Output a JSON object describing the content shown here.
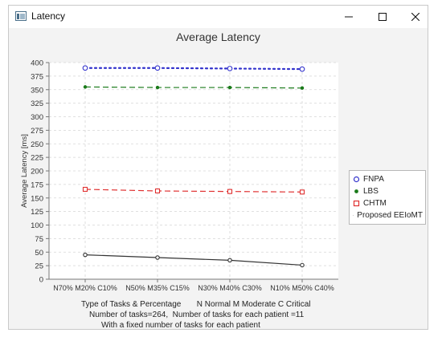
{
  "window": {
    "title": "Latency",
    "icon": "java-app-icon",
    "controls": [
      "minimize-icon",
      "maximize-icon",
      "close-icon"
    ]
  },
  "chart_data": {
    "type": "line",
    "title": "Average Latency",
    "xlabel": "",
    "ylabel": "Average Latency [ms]",
    "categories": [
      "N70% M20% C10%",
      "N50% M35% C15%",
      "N30% M40% C30%",
      "N10% M50% C40%"
    ],
    "ylim": [
      0,
      400
    ],
    "yticks": [
      0,
      25,
      50,
      75,
      100,
      125,
      150,
      175,
      200,
      225,
      250,
      275,
      300,
      325,
      350,
      375,
      400
    ],
    "grid": true,
    "legend_position": "right",
    "series": [
      {
        "name": "FNPA",
        "values": [
          390,
          390,
          389,
          388
        ],
        "color": "#3333cc",
        "style": "dotted",
        "marker": "circle"
      },
      {
        "name": "LBS",
        "values": [
          355,
          354,
          354,
          353
        ],
        "color": "#1a7a1a",
        "style": "dashed",
        "marker": "dot"
      },
      {
        "name": "CHTM",
        "values": [
          166,
          163,
          162,
          161
        ],
        "color": "#e03030",
        "style": "dashed",
        "marker": "square"
      },
      {
        "name": "Proposed EEIoMT",
        "values": [
          45,
          40,
          35,
          26
        ],
        "color": "#333333",
        "style": "solid",
        "marker": "circle"
      }
    ]
  },
  "captions": {
    "line1": "Type of Tasks & Percentage       N Normal M Moderate C Critical",
    "line2": "Number of tasks=264,  Number of tasks for each patient =11",
    "line3": "With a fixed number of tasks for each patient"
  }
}
